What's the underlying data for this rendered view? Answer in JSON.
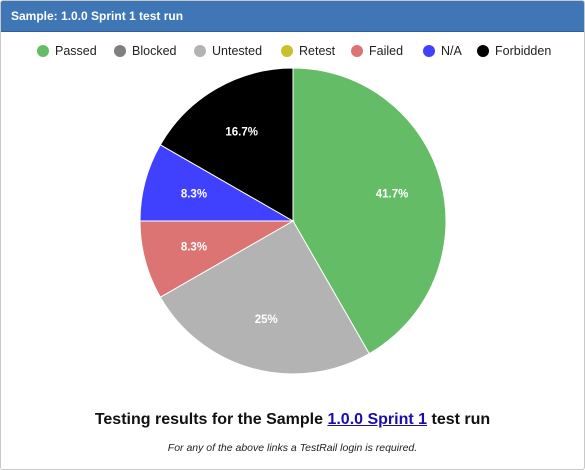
{
  "header": {
    "title": "Sample: 1.0.0 Sprint 1 test run"
  },
  "legend": [
    {
      "label": "Passed",
      "color": "#65bc66"
    },
    {
      "label": "Blocked",
      "color": "#808080"
    },
    {
      "label": "Untested",
      "color": "#b3b3b3"
    },
    {
      "label": "Retest",
      "color": "#c9c12c"
    },
    {
      "label": "Failed",
      "color": "#dc7474"
    },
    {
      "label": "N/A",
      "color": "#4040ff"
    },
    {
      "label": "Forbidden",
      "color": "#000000"
    }
  ],
  "chart_data": {
    "type": "pie",
    "slices": [
      {
        "label": "Passed",
        "value": 41.7,
        "display": "41.7%",
        "color": "#65bc66"
      },
      {
        "label": "Blocked",
        "value": 0,
        "display": "",
        "color": "#808080"
      },
      {
        "label": "Untested",
        "value": 25,
        "display": "25%",
        "color": "#b3b3b3"
      },
      {
        "label": "Retest",
        "value": 0,
        "display": "",
        "color": "#c9c12c"
      },
      {
        "label": "Failed",
        "value": 8.3,
        "display": "8.3%",
        "color": "#dc7474"
      },
      {
        "label": "N/A",
        "value": 8.3,
        "display": "8.3%",
        "color": "#4040ff"
      },
      {
        "label": "Forbidden",
        "value": 16.7,
        "display": "16.7%",
        "color": "#000000"
      }
    ],
    "start_angle": "12 o'clock",
    "direction": "clockwise",
    "legend_position": "top"
  },
  "footer": {
    "prefix": "Testing results for the Sample ",
    "link_text": "1.0.0 Sprint 1",
    "suffix": " test run",
    "note": "For any of the above links a TestRail login is required."
  }
}
